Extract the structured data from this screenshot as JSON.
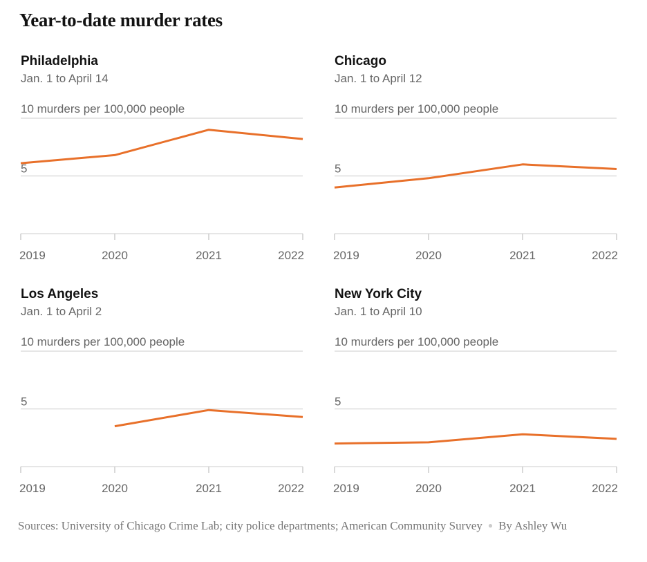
{
  "title": "Year-to-date murder rates",
  "footer": {
    "sources": "Sources: University of Chicago Crime Lab; city police departments; American Community Survey",
    "byline": "By Ashley Wu"
  },
  "colors": {
    "line": "#e8702a",
    "grid": "#dddddd",
    "axis_text": "#666666"
  },
  "chart_data": [
    {
      "type": "line",
      "title": "Philadelphia",
      "subtitle": "Jan. 1 to April 14",
      "ylabel": "10 murders per 100,000 people",
      "y_mid_label": "5",
      "ylim": [
        0,
        10
      ],
      "yticks": [
        0,
        5,
        10
      ],
      "categories": [
        "2019",
        "2020",
        "2021",
        "2022"
      ],
      "values": [
        6.1,
        6.8,
        9.0,
        8.2
      ]
    },
    {
      "type": "line",
      "title": "Chicago",
      "subtitle": "Jan. 1 to April 12",
      "ylabel": "10 murders per 100,000 people",
      "y_mid_label": "5",
      "ylim": [
        0,
        10
      ],
      "yticks": [
        0,
        5,
        10
      ],
      "categories": [
        "2019",
        "2020",
        "2021",
        "2022"
      ],
      "values": [
        4.0,
        4.8,
        6.0,
        5.6
      ]
    },
    {
      "type": "line",
      "title": "Los Angeles",
      "subtitle": "Jan. 1 to April 2",
      "ylabel": "10 murders per 100,000 people",
      "y_mid_label": "5",
      "ylim": [
        0,
        10
      ],
      "yticks": [
        0,
        5,
        10
      ],
      "categories": [
        "2019",
        "2020",
        "2021",
        "2022"
      ],
      "values": [
        null,
        3.5,
        4.9,
        4.3
      ]
    },
    {
      "type": "line",
      "title": "New York City",
      "subtitle": "Jan. 1 to April 10",
      "ylabel": "10 murders per 100,000 people",
      "y_mid_label": "5",
      "ylim": [
        0,
        10
      ],
      "yticks": [
        0,
        5,
        10
      ],
      "categories": [
        "2019",
        "2020",
        "2021",
        "2022"
      ],
      "values": [
        2.0,
        2.1,
        2.8,
        2.4
      ]
    }
  ]
}
